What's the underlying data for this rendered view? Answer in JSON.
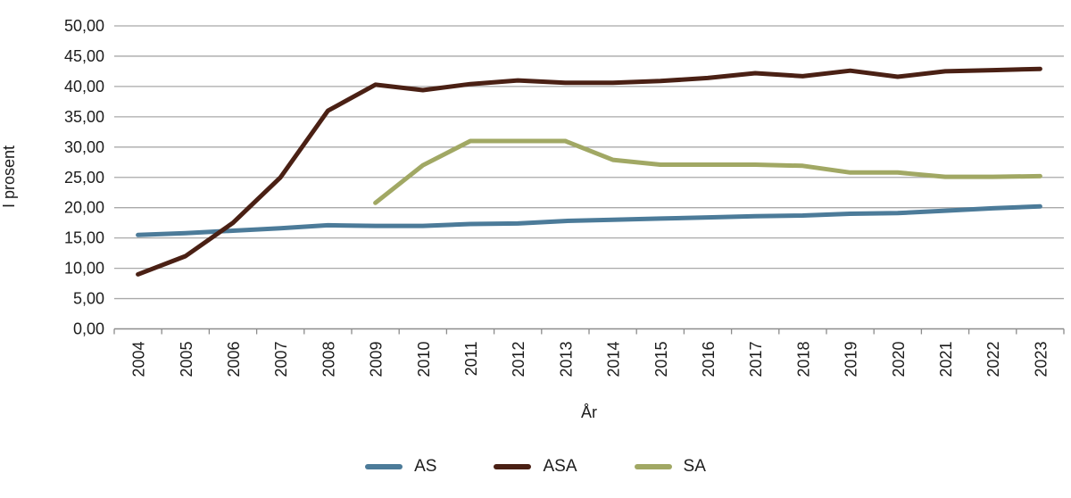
{
  "chart_data": {
    "type": "line",
    "title": "",
    "xlabel": "År",
    "ylabel": "I prosent",
    "x": [
      "2004",
      "2005",
      "2006",
      "2007",
      "2008",
      "2009",
      "2010",
      "2011",
      "2012",
      "2013",
      "2014",
      "2015",
      "2016",
      "2017",
      "2018",
      "2019",
      "2020",
      "2021",
      "2022",
      "2023"
    ],
    "ylim": [
      0,
      50
    ],
    "y_tick_step": 5,
    "y_tick_labels": [
      "0,00",
      "5,00",
      "10,00",
      "15,00",
      "20,00",
      "25,00",
      "30,00",
      "35,00",
      "40,00",
      "45,00",
      "50,00"
    ],
    "grid": true,
    "legend_position": "bottom",
    "series": [
      {
        "name": "AS",
        "color": "#4c7b99",
        "values": [
          15.5,
          15.8,
          16.2,
          16.6,
          17.1,
          17.0,
          17.0,
          17.3,
          17.4,
          17.8,
          18.0,
          18.2,
          18.4,
          18.6,
          18.7,
          19.0,
          19.1,
          19.5,
          19.9,
          20.2
        ]
      },
      {
        "name": "ASA",
        "color": "#4a2014",
        "values": [
          9.0,
          12.0,
          17.5,
          25.0,
          36.0,
          40.3,
          39.4,
          40.4,
          41.0,
          40.6,
          40.6,
          40.9,
          41.4,
          42.2,
          41.7,
          42.6,
          41.6,
          42.5,
          42.7,
          42.9
        ]
      },
      {
        "name": "SA",
        "color": "#a1a864",
        "values": [
          null,
          null,
          null,
          null,
          null,
          20.8,
          27.0,
          31.0,
          31.0,
          31.0,
          27.9,
          27.1,
          27.1,
          27.1,
          26.9,
          25.8,
          25.8,
          25.1,
          25.1,
          25.2
        ]
      }
    ],
    "colors": {
      "gridline": "#a9a9a9",
      "axis": "#8c8c8c",
      "text": "#1c1c1c"
    }
  }
}
